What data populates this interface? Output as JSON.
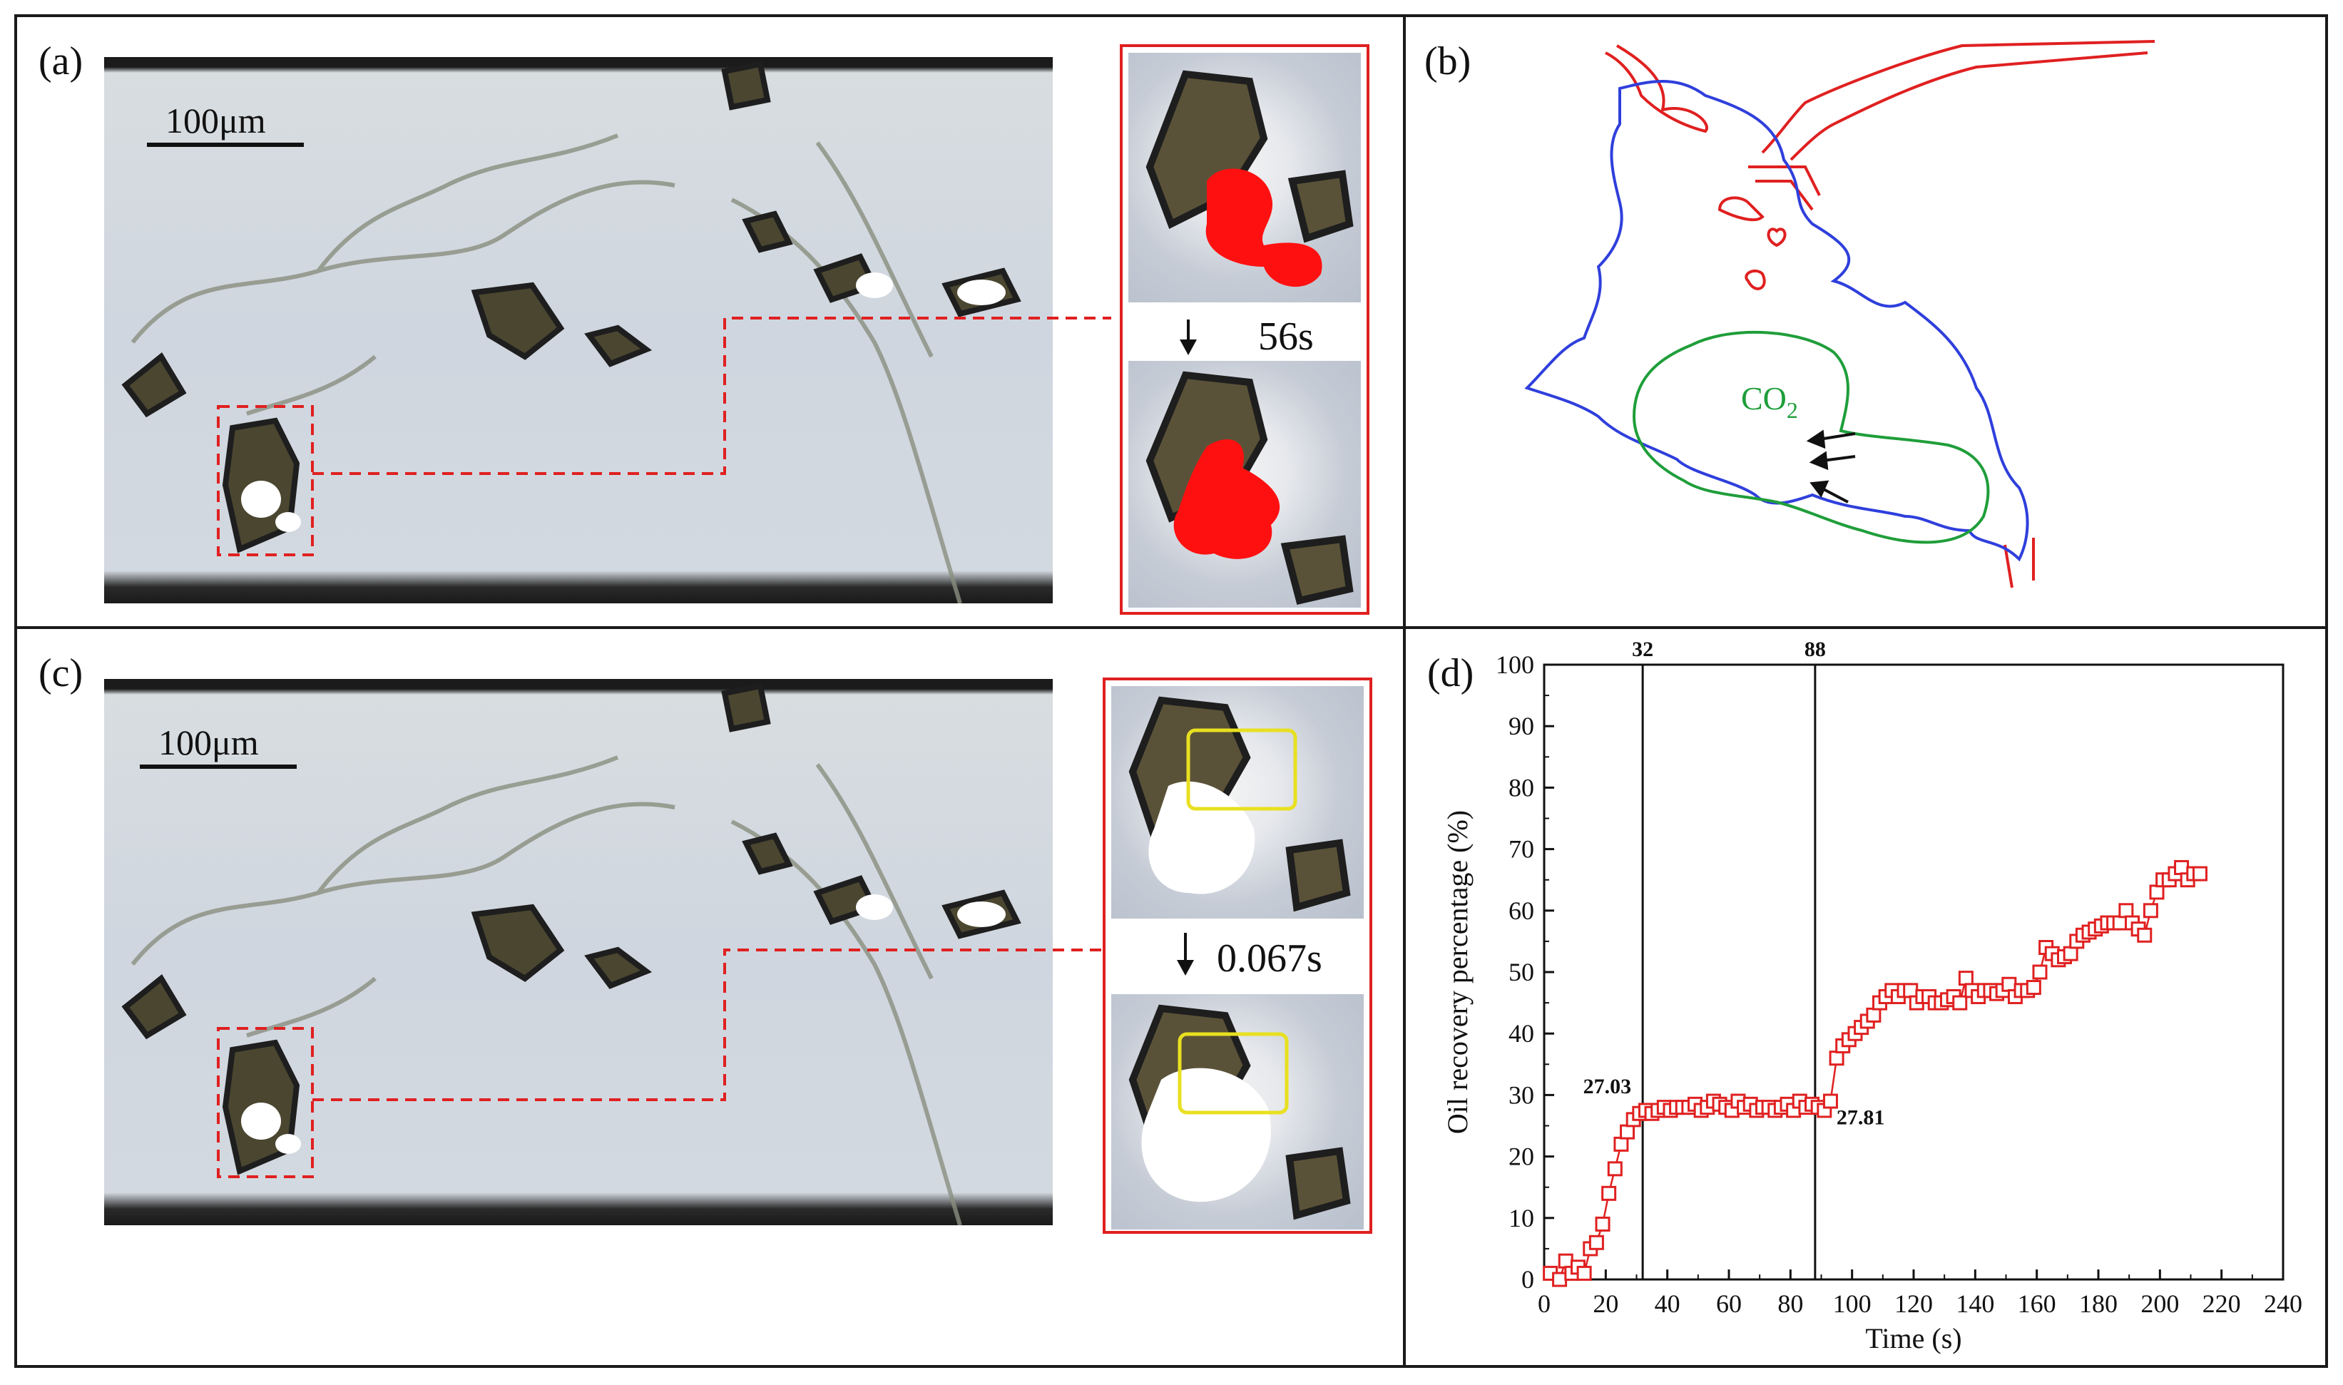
{
  "panels": {
    "a": {
      "label": "(a)",
      "scale_label": "100μm",
      "time_label": "56s"
    },
    "b": {
      "label": "(b)",
      "co2_label": "CO",
      "co2_sub": "2"
    },
    "c": {
      "label": "(c)",
      "scale_label": "100μm",
      "time_label": "0.067s"
    },
    "d": {
      "label": "(d)"
    }
  },
  "colors": {
    "red": "#e02020",
    "blue": "#2f3fdc",
    "green": "#1f9e3a",
    "yellow": "#e8e020"
  },
  "chart_data": {
    "type": "scatter",
    "xlabel": "Time (s)",
    "ylabel": "Oil recovery percentage (%)",
    "xlim": [
      0,
      240
    ],
    "ylim": [
      0,
      100
    ],
    "xticks": [
      0,
      20,
      40,
      60,
      80,
      100,
      120,
      140,
      160,
      180,
      200,
      220,
      240
    ],
    "yticks": [
      0,
      10,
      20,
      30,
      40,
      50,
      60,
      70,
      80,
      90,
      100
    ],
    "vlines": [
      {
        "x": 32,
        "label": "32"
      },
      {
        "x": 88,
        "label": "88"
      }
    ],
    "annotations": [
      {
        "text": "27.03",
        "x": 32,
        "y": 27.03
      },
      {
        "text": "27.81",
        "x": 88,
        "y": 27.81
      }
    ],
    "series": [
      {
        "marker": "open-square",
        "color": "#e02020",
        "x": [
          2,
          5,
          7,
          9,
          11,
          13,
          15,
          17,
          19,
          21,
          23,
          25,
          27,
          29,
          31,
          33,
          35,
          37,
          39,
          41,
          43,
          45,
          47,
          49,
          51,
          53,
          55,
          57,
          59,
          61,
          63,
          65,
          67,
          69,
          71,
          73,
          75,
          77,
          79,
          81,
          83,
          85,
          87,
          89,
          91,
          93,
          95,
          97,
          99,
          101,
          103,
          105,
          107,
          109,
          111,
          113,
          115,
          117,
          119,
          121,
          123,
          125,
          127,
          129,
          131,
          133,
          135,
          137,
          139,
          141,
          143,
          145,
          147,
          149,
          151,
          153,
          155,
          157,
          159,
          161,
          163,
          165,
          167,
          169,
          171,
          173,
          175,
          177,
          179,
          181,
          183,
          185,
          187,
          189,
          191,
          193,
          195,
          197,
          199,
          201,
          203,
          205,
          207,
          209,
          211,
          213
        ],
        "y": [
          1,
          0,
          3,
          1,
          2,
          1,
          5,
          6,
          9,
          14,
          18,
          22,
          24,
          26,
          27,
          27.5,
          27,
          27.5,
          28,
          27.5,
          28,
          28,
          28,
          28.5,
          27.5,
          28,
          29,
          28.5,
          28,
          27.5,
          29,
          28,
          28.5,
          27.5,
          28,
          28,
          27.5,
          28,
          28.5,
          27.5,
          29,
          28,
          28.5,
          28,
          27.5,
          29,
          36,
          38,
          39,
          40,
          41,
          42,
          43,
          45,
          46,
          47,
          46,
          47,
          47,
          45,
          46,
          46,
          45,
          45,
          45.5,
          46,
          45,
          49,
          47,
          46,
          47,
          47,
          46.5,
          47,
          48,
          46,
          47,
          47,
          47.5,
          50,
          54,
          53,
          52,
          52.5,
          53,
          55,
          56,
          56.5,
          57,
          57.5,
          58,
          58,
          58,
          60,
          58,
          57,
          56,
          60,
          63,
          65,
          65,
          66,
          67,
          65,
          66,
          66
        ]
      }
    ]
  }
}
